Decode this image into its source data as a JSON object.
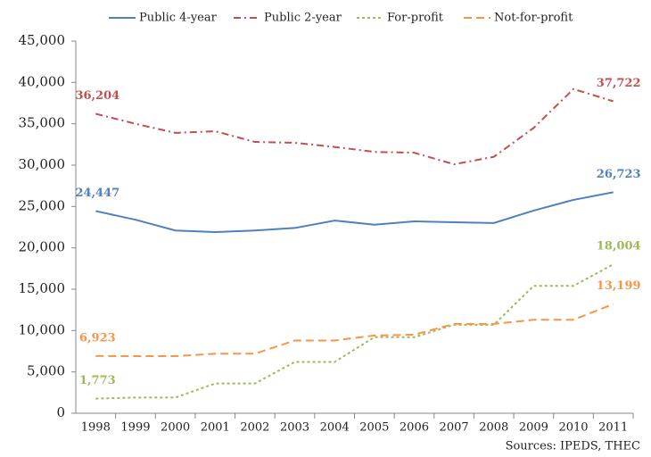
{
  "chart_data": {
    "type": "line",
    "categories": [
      "1998",
      "1999",
      "2000",
      "2001",
      "2002",
      "2003",
      "2004",
      "2005",
      "2006",
      "2007",
      "2008",
      "2009",
      "2010",
      "2011"
    ],
    "series": [
      {
        "name": "Public 4-year",
        "color": "#4f81bd",
        "style": "solid",
        "values": [
          24447,
          23400,
          22100,
          21900,
          22100,
          22400,
          23300,
          22800,
          23200,
          23100,
          23000,
          24500,
          25800,
          26723
        ],
        "value_labels": [
          "24,447",
          null,
          null,
          null,
          null,
          null,
          null,
          null,
          null,
          null,
          null,
          null,
          null,
          "26,723"
        ]
      },
      {
        "name": "Public 2-year",
        "color": "#c0504d",
        "style": "dashdot",
        "values": [
          36204,
          35000,
          33900,
          34100,
          32800,
          32700,
          32200,
          31600,
          31500,
          30100,
          31000,
          34500,
          39200,
          37722
        ],
        "value_labels": [
          "36,204",
          null,
          null,
          null,
          null,
          null,
          null,
          null,
          null,
          null,
          null,
          null,
          null,
          "37,722"
        ]
      },
      {
        "name": "For-profit",
        "color": "#9bbb59",
        "style": "dotted",
        "values": [
          1773,
          1900,
          1900,
          3600,
          3600,
          6200,
          6200,
          9200,
          9200,
          10700,
          10700,
          15400,
          15400,
          18004
        ],
        "value_labels": [
          "1,773",
          null,
          null,
          null,
          null,
          null,
          null,
          null,
          null,
          null,
          null,
          null,
          null,
          "18,004"
        ]
      },
      {
        "name": "Not-for-profit",
        "color": "#f79646",
        "style": "dashed",
        "values": [
          6923,
          6900,
          6900,
          7200,
          7200,
          8800,
          8800,
          9400,
          9500,
          10800,
          10800,
          11300,
          11300,
          13199
        ],
        "value_labels": [
          "6,923",
          null,
          null,
          null,
          null,
          null,
          null,
          null,
          null,
          null,
          null,
          null,
          null,
          "13,199"
        ]
      }
    ],
    "ylim": [
      0,
      45000
    ],
    "yticks": [
      0,
      {
        "value": 5000,
        "label": "5,000"
      },
      {
        "value": 10000,
        "label": "10,000"
      },
      {
        "value": 15000,
        "label": "15,000"
      },
      {
        "value": 20000,
        "label": "20,000"
      },
      {
        "value": 25000,
        "label": "25,000"
      },
      {
        "value": 30000,
        "label": "30,000"
      },
      {
        "value": 35000,
        "label": "35,000"
      },
      {
        "value": 40000,
        "label": "40,000"
      },
      {
        "value": 45000,
        "label": "45,000"
      }
    ],
    "grid": false,
    "legend": "top",
    "source": "Sources: IPEDS, THEC"
  }
}
